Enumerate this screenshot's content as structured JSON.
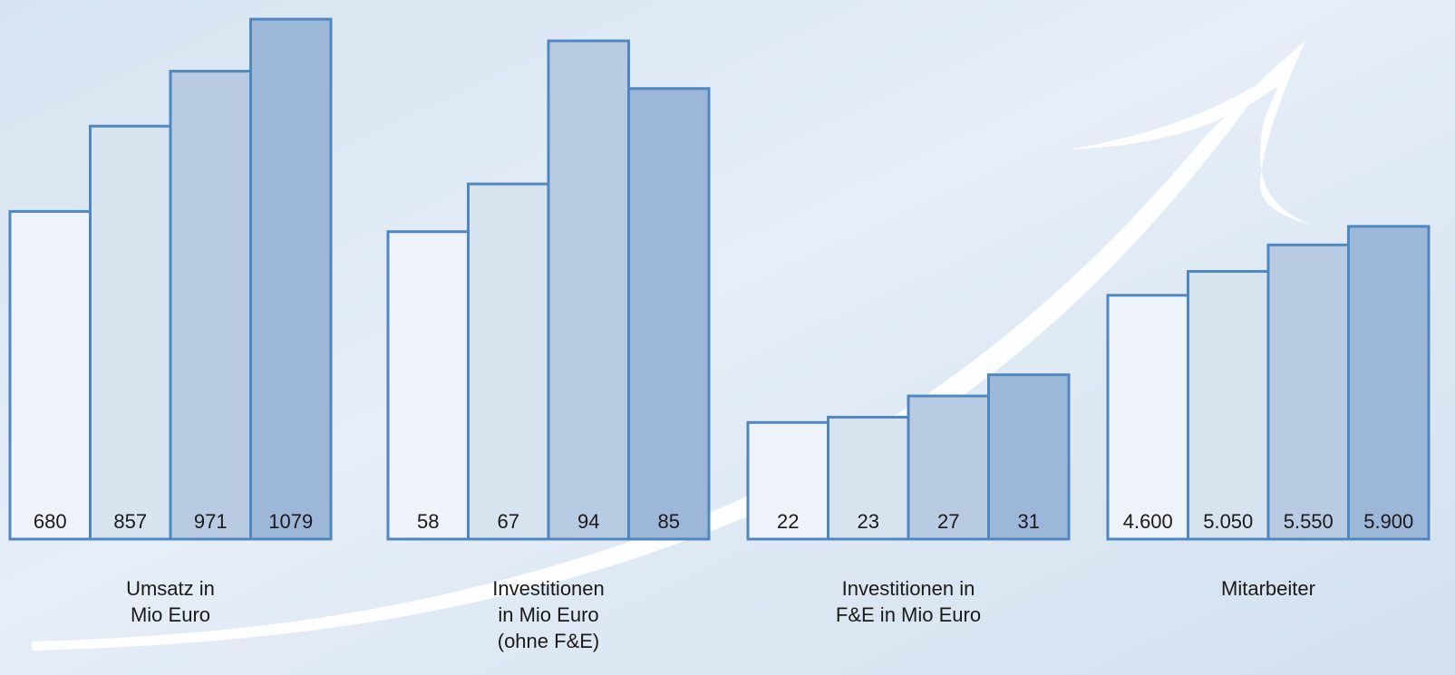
{
  "chart_data": [
    {
      "type": "bar",
      "title": [
        "Umsatz in",
        "Mio Euro"
      ],
      "values": [
        680,
        857,
        971,
        1079
      ],
      "ylim": [
        0,
        1100
      ],
      "colors": [
        "#eef3fa",
        "#d8e3f0",
        "#b8cbe3",
        "#9db7d8"
      ],
      "edge_color": "#4f87c0"
    },
    {
      "type": "bar",
      "title": [
        "Investitionen",
        "in Mio Euro",
        "(ohne F&E)"
      ],
      "values": [
        58,
        67,
        94,
        85
      ],
      "ylim": [
        0,
        100
      ],
      "colors": [
        "#eef3fa",
        "#d8e3f0",
        "#b8cbe3",
        "#9db7d8"
      ],
      "edge_color": "#4f87c0"
    },
    {
      "type": "bar",
      "title": [
        "Investitionen in",
        "F&E in Mio Euro"
      ],
      "values": [
        22,
        23,
        27,
        31
      ],
      "ylim": [
        0,
        100
      ],
      "colors": [
        "#eef3fa",
        "#d8e3f0",
        "#b8cbe3",
        "#9db7d8"
      ],
      "edge_color": "#4f87c0"
    },
    {
      "type": "bar",
      "title": [
        "Mitarbeiter"
      ],
      "values": [
        4600,
        5050,
        5550,
        5900
      ],
      "value_labels": [
        "4.600",
        "5.050",
        "5.550",
        "5.900"
      ],
      "ylim": [
        0,
        10000
      ],
      "colors": [
        "#eef3fa",
        "#d8e3f0",
        "#b8cbe3",
        "#9db7d8"
      ],
      "edge_color": "#4f87c0"
    }
  ]
}
